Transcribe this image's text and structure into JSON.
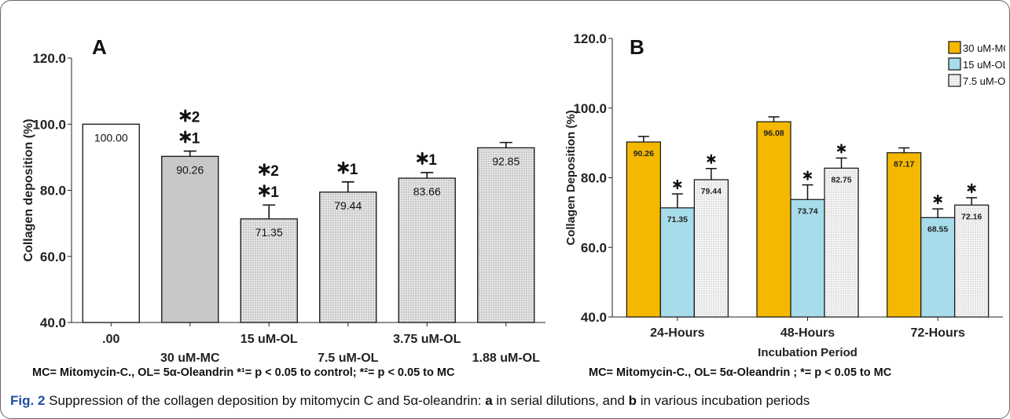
{
  "chart_data": [
    {
      "type": "bar",
      "panel_label": "A",
      "ylabel": "Collagen deposition (%)",
      "ylim": [
        40,
        120
      ],
      "yticks": [
        "40.0",
        "60.0",
        "80.0",
        "100.0",
        "120.0"
      ],
      "categories": [
        ".00",
        "30 uM-MC",
        "15 uM-OL",
        "7.5 uM-OL",
        "3.75 uM-OL",
        "1.88 uM-OL"
      ],
      "values": [
        100.0,
        90.26,
        71.35,
        79.44,
        83.66,
        92.85
      ],
      "value_labels": [
        "100.00",
        "90.26",
        "71.35",
        "79.44",
        "83.66",
        "92.85"
      ],
      "error": [
        0,
        1.6,
        4.2,
        3.1,
        1.7,
        1.6
      ],
      "significance": [
        [],
        [
          "*2",
          "*1"
        ],
        [
          "*2",
          "*1"
        ],
        [
          "*1"
        ],
        [
          "*1"
        ],
        []
      ],
      "fills": [
        "#ffffff",
        "#c8c8c8",
        "#e3e3e3",
        "#e3e3e3",
        "#e3e3e3",
        "#e3e3e3"
      ],
      "footnote": "MC= Mitomycin-C., OL= 5α-Oleandrin  *¹= p < 0.05 to control; *²= p < 0.05 to MC"
    },
    {
      "type": "bar",
      "panel_label": "B",
      "ylabel": "Collagen Deposition (%)",
      "xlabel": "Incubation Period",
      "ylim": [
        40,
        120
      ],
      "yticks": [
        "40.0",
        "60.0",
        "80.0",
        "100.0",
        "120.0"
      ],
      "categories": [
        "24-Hours",
        "48-Hours",
        "72-Hours"
      ],
      "series": [
        {
          "name": "30 uM-MC",
          "color": "#f5b800",
          "values": [
            90.26,
            96.08,
            87.17
          ],
          "labels": [
            "90.26",
            "96.08",
            "87.17"
          ],
          "error": [
            1.6,
            1.4,
            1.4
          ],
          "star": [
            false,
            false,
            false
          ]
        },
        {
          "name": "15 uM-OL",
          "color": "#a7dcea",
          "values": [
            71.35,
            73.74,
            68.55
          ],
          "labels": [
            "71.35",
            "73.74",
            "68.55"
          ],
          "error": [
            4.0,
            4.2,
            2.5
          ],
          "star": [
            true,
            true,
            true
          ]
        },
        {
          "name": "7.5 uM-OL",
          "color": "#ececec",
          "values": [
            79.44,
            82.75,
            72.16
          ],
          "labels": [
            "79.44",
            "82.75",
            "72.16"
          ],
          "error": [
            3.2,
            2.9,
            2.1
          ],
          "star": [
            true,
            true,
            true
          ]
        }
      ],
      "legend_position": "top-right",
      "footnote": "MC= Mitomycin-C., OL= 5α-Oleandrin ; *= p < 0.05 to MC"
    }
  ],
  "caption": {
    "figure_label": "Fig. 2",
    "text_1": " Suppression of the collagen deposition by mitomycin C and 5α-oleandrin: ",
    "bold_a": "a",
    "text_2": " in serial dilutions, and ",
    "bold_b": "b",
    "text_3": " in various incubation periods"
  }
}
